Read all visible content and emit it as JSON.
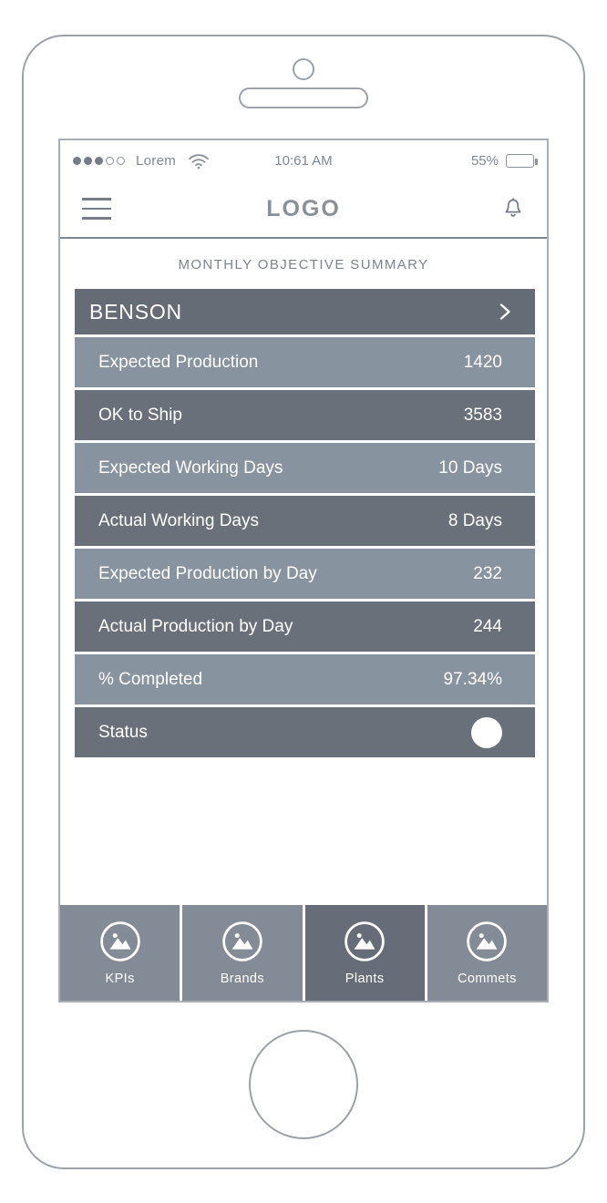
{
  "status_bar": {
    "carrier": "Lorem",
    "time": "10:61 AM",
    "battery_percent": "55%",
    "signal_filled_dots": 3,
    "signal_empty_dots": 2,
    "battery_fill_ratio": 0.6
  },
  "header": {
    "logo": "LOGO"
  },
  "page_title": "MONTHLY OBJECTIVE SUMMARY",
  "summary_table": {
    "header": {
      "label": "BENSON",
      "icon": "chevron-right-icon"
    },
    "rows": [
      {
        "label": "Expected Production",
        "value": "1420",
        "tone": "light"
      },
      {
        "label": "OK to Ship",
        "value": "3583",
        "tone": "dark"
      },
      {
        "label": "Expected Working Days",
        "value": "10 Days",
        "tone": "light"
      },
      {
        "label": "Actual Working Days",
        "value": "8 Days",
        "tone": "dark"
      },
      {
        "label": "Expected Production by Day",
        "value": "232",
        "tone": "light"
      },
      {
        "label": "Actual Production by Day",
        "value": "244",
        "tone": "dark"
      },
      {
        "label": "% Completed",
        "value": "97.34%",
        "tone": "light"
      },
      {
        "label": "Status",
        "value": "",
        "tone": "dark",
        "indicator": "white-circle"
      }
    ]
  },
  "bottom_nav": {
    "items": [
      {
        "label": "KPIs",
        "active": false
      },
      {
        "label": "Brands",
        "active": false
      },
      {
        "label": "Plants",
        "active": true
      },
      {
        "label": "Commets",
        "active": false
      }
    ],
    "icon": "image-icon"
  },
  "colors": {
    "row_dark": "#6a707a",
    "row_light": "#8893a0",
    "table_header": "#666c76",
    "nav_inactive": "#828b96",
    "nav_active": "#676d78",
    "frame_border": "#9ba1a7",
    "muted_text": "#81878f",
    "row_text": "#ffffff"
  }
}
